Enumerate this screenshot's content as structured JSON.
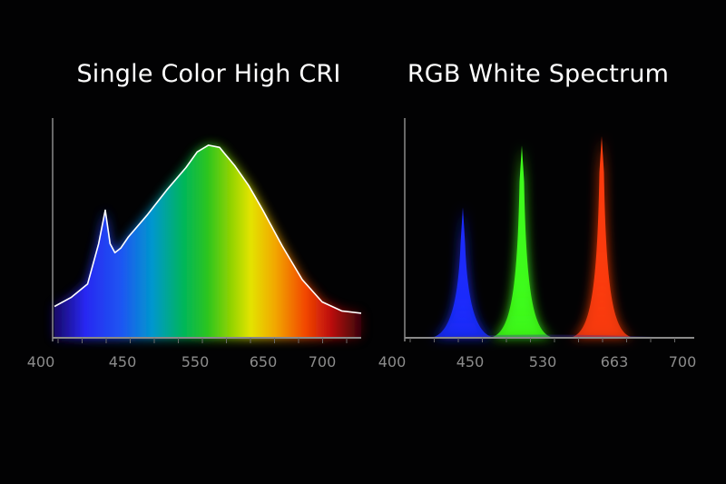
{
  "chart_data": [
    {
      "type": "area",
      "title": "Single Color High CRI",
      "xlabel": "",
      "ylabel": "",
      "grid": false,
      "legend": "none",
      "x_ticks": [
        400,
        450,
        550,
        650,
        700
      ],
      "x_tick_labels": [
        "400",
        "450",
        "550",
        "650",
        "700"
      ],
      "xlim": [
        400,
        730
      ],
      "ylim": [
        0,
        1
      ],
      "series": [
        {
          "x": [
            400,
            415,
            430,
            440,
            446,
            451,
            456,
            462,
            470,
            490,
            510,
            530,
            550,
            570,
            590,
            600,
            610,
            625,
            640,
            660,
            680,
            700,
            715,
            730
          ],
          "y": [
            0.14,
            0.18,
            0.24,
            0.42,
            0.57,
            0.42,
            0.38,
            0.4,
            0.45,
            0.55,
            0.66,
            0.76,
            0.83,
            0.86,
            0.85,
            0.82,
            0.77,
            0.68,
            0.57,
            0.41,
            0.26,
            0.16,
            0.12,
            0.11
          ]
        }
      ],
      "colors": {
        "outline": "#ffffff",
        "axis": "#8a8a8a"
      }
    },
    {
      "type": "area",
      "title": "RGB White Spectrum",
      "xlabel": "",
      "ylabel": "",
      "grid": false,
      "legend": "none",
      "x_ticks": [
        400,
        450,
        530,
        663,
        700
      ],
      "x_tick_labels": [
        "400",
        "450",
        "530",
        "663",
        "700"
      ],
      "xlim": [
        400,
        730
      ],
      "ylim": [
        0,
        1
      ],
      "series": [
        {
          "color": "#1a2cff",
          "peak_x": 450,
          "peak_y": 0.57
        },
        {
          "color": "#3fff1a",
          "peak_x": 530,
          "peak_y": 0.84
        },
        {
          "color": "#ff3c10",
          "peak_x": 663,
          "peak_y": 0.88
        }
      ],
      "colors": {
        "axis": "#8a8a8a"
      }
    }
  ]
}
